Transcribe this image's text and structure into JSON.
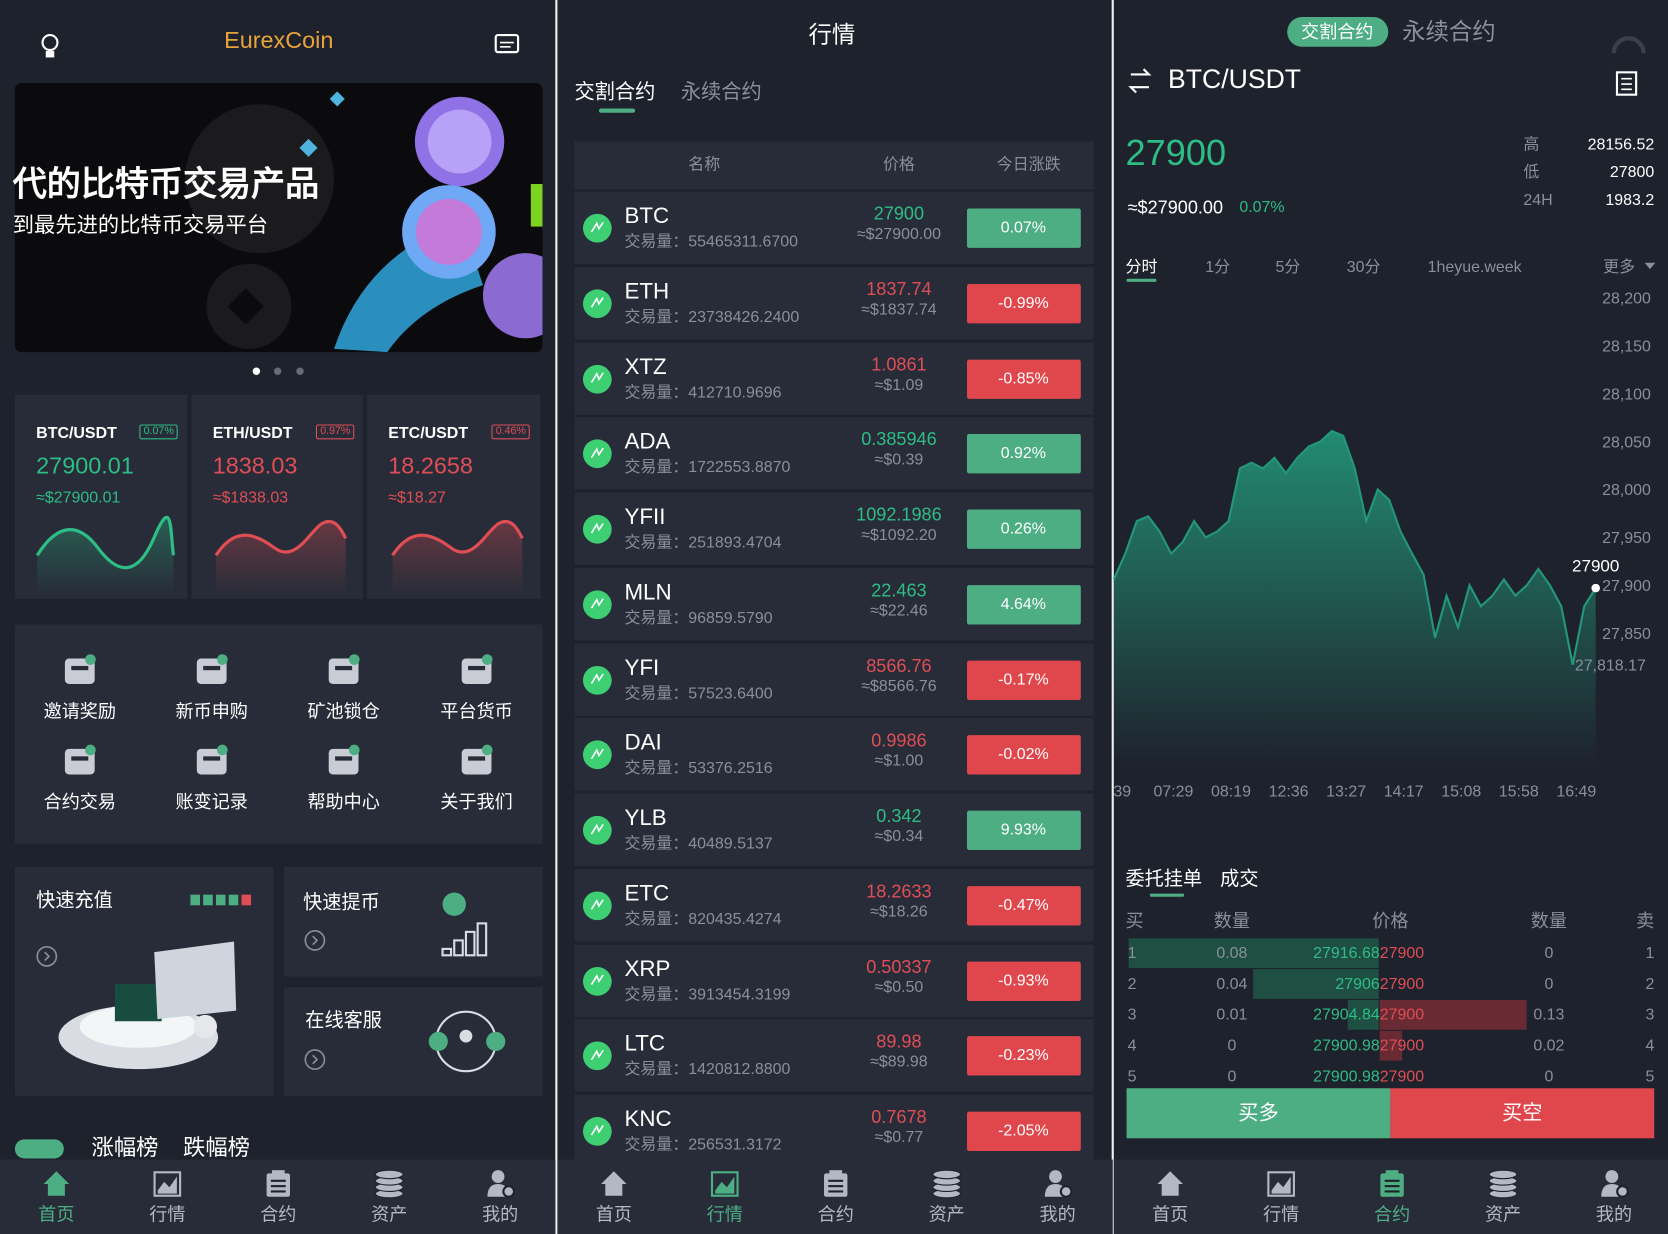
{
  "left": {
    "title": "EurexCoin",
    "banner": {
      "line1": "代的比特币交易产品",
      "line2": "到最先进的比特币交易平台"
    },
    "tickers": [
      {
        "pair": "BTC/USDT",
        "change": "0.07%",
        "price": "27900.01",
        "usd": "≈$27900.01",
        "trend": "up"
      },
      {
        "pair": "ETH/USDT",
        "change": "0.97%",
        "price": "1838.03",
        "usd": "≈$1838.03",
        "trend": "down"
      },
      {
        "pair": "ETC/USDT",
        "change": "0.46%",
        "price": "18.2658",
        "usd": "≈$18.27",
        "trend": "down"
      }
    ],
    "menu": [
      "邀请奖励",
      "新币申购",
      "矿池锁仓",
      "平台货币",
      "合约交易",
      "账变记录",
      "帮助中心",
      "关于我们"
    ],
    "cards": {
      "deposit": "快速充值",
      "withdraw": "快速提币",
      "service": "在线客服"
    },
    "tabs": [
      "涨幅榜",
      "跌幅榜"
    ],
    "nav_active": 0
  },
  "middle": {
    "title": "行情",
    "tabs": [
      "交割合约",
      "永续合约"
    ],
    "headers": [
      "名称",
      "价格",
      "今日涨跌"
    ],
    "rows": [
      {
        "name": "BTC",
        "volume": "交易量：55465311.6700",
        "price": "27900",
        "usd": "≈$27900.00",
        "change": "0.07%",
        "trend": "up"
      },
      {
        "name": "ETH",
        "volume": "交易量：23738426.2400",
        "price": "1837.74",
        "usd": "≈$1837.74",
        "change": "-0.99%",
        "trend": "down"
      },
      {
        "name": "XTZ",
        "volume": "交易量：412710.9696",
        "price": "1.0861",
        "usd": "≈$1.09",
        "change": "-0.85%",
        "trend": "down"
      },
      {
        "name": "ADA",
        "volume": "交易量：1722553.8870",
        "price": "0.385946",
        "usd": "≈$0.39",
        "change": "0.92%",
        "trend": "up"
      },
      {
        "name": "YFII",
        "volume": "交易量：251893.4704",
        "price": "1092.1986",
        "usd": "≈$1092.20",
        "change": "0.26%",
        "trend": "up"
      },
      {
        "name": "MLN",
        "volume": "交易量：96859.5790",
        "price": "22.463",
        "usd": "≈$22.46",
        "change": "4.64%",
        "trend": "up"
      },
      {
        "name": "YFI",
        "volume": "交易量：57523.6400",
        "price": "8566.76",
        "usd": "≈$8566.76",
        "change": "-0.17%",
        "trend": "down"
      },
      {
        "name": "DAI",
        "volume": "交易量：53376.2516",
        "price": "0.9986",
        "usd": "≈$1.00",
        "change": "-0.02%",
        "trend": "down"
      },
      {
        "name": "YLB",
        "volume": "交易量：40489.5137",
        "price": "0.342",
        "usd": "≈$0.34",
        "change": "9.93%",
        "trend": "up"
      },
      {
        "name": "ETC",
        "volume": "交易量：820435.4274",
        "price": "18.2633",
        "usd": "≈$18.26",
        "change": "-0.47%",
        "trend": "down"
      },
      {
        "name": "XRP",
        "volume": "交易量：3913454.3199",
        "price": "0.50337",
        "usd": "≈$0.50",
        "change": "-0.93%",
        "trend": "down"
      },
      {
        "name": "LTC",
        "volume": "交易量：1420812.8800",
        "price": "89.98",
        "usd": "≈$89.98",
        "change": "-0.23%",
        "trend": "down"
      },
      {
        "name": "KNC",
        "volume": "交易量：256531.3172",
        "price": "0.7678",
        "usd": "≈$0.77",
        "change": "-2.05%",
        "trend": "down"
      }
    ],
    "nav_active": 1
  },
  "right": {
    "tabs": [
      "交割合约",
      "永续合约"
    ],
    "pair": "BTC/USDT",
    "price": "27900",
    "usd": "≈$27900.00",
    "change": "0.07%",
    "stats": [
      {
        "label": "高",
        "value": "28156.52"
      },
      {
        "label": "低",
        "value": "27800"
      },
      {
        "label": "24H",
        "value": "1983.2"
      }
    ],
    "periods": [
      "分时",
      "1分",
      "5分",
      "30分",
      "1heyue.week",
      "更多"
    ],
    "chart": {
      "type": "area",
      "color": "#23977a",
      "values": [
        27907,
        27934,
        27968,
        27973,
        27957,
        27934,
        27946,
        27968,
        27951,
        27957,
        27968,
        28023,
        28029,
        28023,
        28034,
        28018,
        28034,
        28046,
        28051,
        28062,
        28057,
        28023,
        27968,
        28001,
        27990,
        27957,
        27934,
        27912,
        27846,
        27890,
        27857,
        27901,
        27879,
        27890,
        27907,
        27890,
        27901,
        27918,
        27901,
        27879,
        27818,
        27879,
        27898
      ],
      "ylim": [
        27800,
        28225
      ],
      "yticks": [
        {
          "value": 28200,
          "label": "28,200"
        },
        {
          "value": 28150,
          "label": "28,150"
        },
        {
          "value": 28100,
          "label": "28,100"
        },
        {
          "value": 28050,
          "label": "28,050"
        },
        {
          "value": 28000,
          "label": "28,000"
        },
        {
          "value": 27950,
          "label": "27,950"
        },
        {
          "value": 27900,
          "label": "27,900"
        },
        {
          "value": 27850,
          "label": "27,850"
        }
      ],
      "xlabels": [
        "39",
        "07:29",
        "08:19",
        "12:36",
        "13:27",
        "14:17",
        "15:08",
        "15:58",
        "16:49"
      ],
      "last_label": "27900",
      "min_label": "27,818.17"
    },
    "book": {
      "tabs": [
        "委托挂单",
        "成交"
      ],
      "headers": [
        "买",
        "数量",
        "价格",
        "数量",
        "卖"
      ],
      "rows": [
        {
          "buy": "1",
          "bid_qty": 0.08,
          "bid": "27916.68",
          "ask": "27900",
          "ask_qty": 0,
          "sell": "1"
        },
        {
          "buy": "2",
          "bid_qty": 0.04,
          "bid": "27906",
          "ask": "27900",
          "ask_qty": 0,
          "sell": "2"
        },
        {
          "buy": "3",
          "bid_qty": 0.01,
          "bid": "27904.84",
          "ask": "27900",
          "ask_qty": 0.13,
          "sell": "3"
        },
        {
          "buy": "4",
          "bid_qty": 0,
          "bid": "27900.98",
          "ask": "27900",
          "ask_qty": 0.02,
          "sell": "4"
        },
        {
          "buy": "5",
          "bid_qty": 0,
          "bid": "27900.98",
          "ask": "27900",
          "ask_qty": 0,
          "sell": "5"
        }
      ]
    },
    "buttons": [
      "买多",
      "买空"
    ],
    "nav_active": 2
  },
  "nav": [
    "首页",
    "行情",
    "合约",
    "资产",
    "我的"
  ]
}
